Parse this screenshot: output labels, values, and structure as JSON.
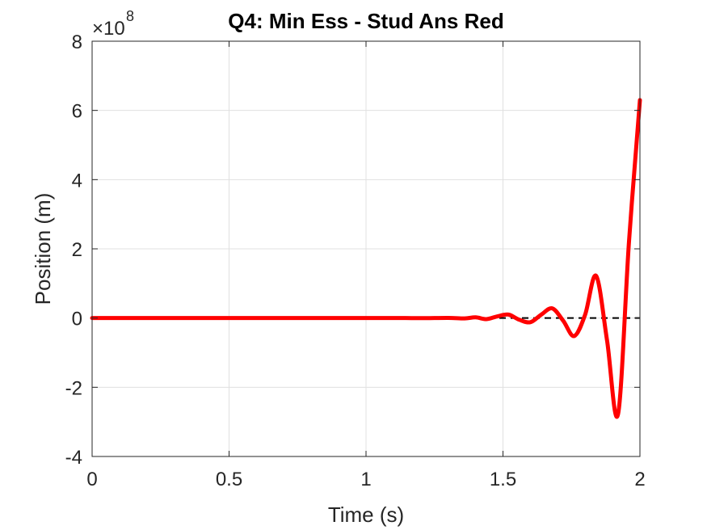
{
  "chart_data": {
    "type": "line",
    "title": "Q4: Min Ess - Stud Ans Red",
    "xlabel": "Time (s)",
    "ylabel": "Position (m)",
    "xlim": [
      0,
      2
    ],
    "ylim": [
      -4,
      8
    ],
    "y_multiplier_base": "×10",
    "y_multiplier_exponent": "8",
    "x_ticks": [
      "0",
      "0.5",
      "1",
      "1.5",
      "2"
    ],
    "x_tick_values": [
      0,
      0.5,
      1,
      1.5,
      2
    ],
    "y_ticks": [
      "-4",
      "-2",
      "0",
      "2",
      "4",
      "6",
      "8"
    ],
    "y_tick_values": [
      -4,
      -2,
      0,
      2,
      4,
      6,
      8
    ],
    "grid": true,
    "reference_line": {
      "y": 0,
      "style": "dashed",
      "color": "#000000"
    },
    "series": [
      {
        "color": "#ff0000",
        "x": [
          0,
          0.2,
          0.4,
          0.6,
          0.8,
          1.0,
          1.1,
          1.2,
          1.3,
          1.36,
          1.4,
          1.44,
          1.48,
          1.52,
          1.56,
          1.6,
          1.64,
          1.68,
          1.72,
          1.76,
          1.8,
          1.84,
          1.88,
          1.92,
          1.96,
          2.0
        ],
        "values": [
          0,
          0,
          0,
          0,
          0,
          0,
          0.002,
          -0.003,
          0.005,
          -0.01,
          0.02,
          -0.03,
          0.05,
          0.1,
          -0.05,
          -0.12,
          0.1,
          0.28,
          -0.08,
          -0.52,
          0.1,
          1.22,
          -0.65,
          -2.78,
          2.2,
          6.3
        ]
      }
    ]
  }
}
